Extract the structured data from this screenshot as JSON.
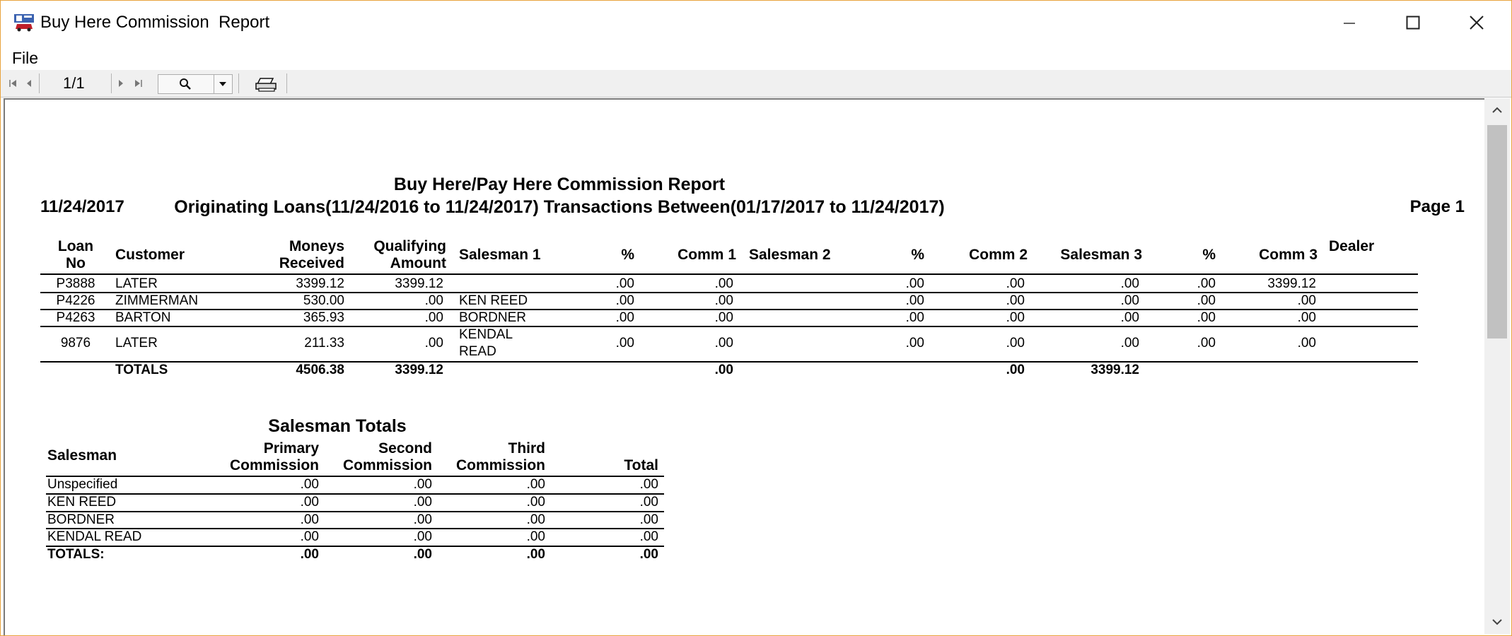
{
  "window": {
    "title": "Buy Here Commission  Report",
    "minimize_icon": "minimize-icon",
    "maximize_icon": "maximize-icon",
    "close_icon": "close-icon",
    "border_color": "#e8a33d"
  },
  "menu": {
    "file": "File"
  },
  "toolbar": {
    "page_indicator": "1/1"
  },
  "report": {
    "date": "11/24/2017",
    "title": "Buy Here/Pay Here Commission Report",
    "subtitle": "Originating Loans(11/24/2016 to 11/24/2017) Transactions Between(01/17/2017 to 11/24/2017)",
    "page": "Page 1",
    "columns": {
      "loan_no_1": "Loan",
      "loan_no_2": "No",
      "customer": "Customer",
      "moneys_1": "Moneys",
      "moneys_2": "Received",
      "qual_1": "Qualifying",
      "qual_2": "Amount",
      "salesman1": "Salesman 1",
      "pct1": "%",
      "comm1": "Comm 1",
      "salesman2": "Salesman 2",
      "pct2": "%",
      "comm2": "Comm 2",
      "salesman3": "Salesman 3",
      "pct3": "%",
      "comm3": "Comm 3",
      "dealer": "Dealer"
    },
    "rows": [
      {
        "loan": "P3888",
        "customer": "LATER",
        "moneys": "3399.12",
        "qual": "3399.12",
        "s1": "",
        "s1b": "",
        "pct1": ".00",
        "comm1": ".00",
        "s2": "",
        "pct2": ".00",
        "comm2": ".00",
        "s3": ".00",
        "pct3": ".00",
        "comm3": "3399.12"
      },
      {
        "loan": "P4226",
        "customer": "ZIMMERMAN",
        "moneys": "530.00",
        "qual": ".00",
        "s1": "KEN REED",
        "s1b": "",
        "pct1": ".00",
        "comm1": ".00",
        "s2": "",
        "pct2": ".00",
        "comm2": ".00",
        "s3": ".00",
        "pct3": ".00",
        "comm3": ".00"
      },
      {
        "loan": "P4263",
        "customer": "BARTON",
        "moneys": "365.93",
        "qual": ".00",
        "s1": "BORDNER",
        "s1b": "",
        "pct1": ".00",
        "comm1": ".00",
        "s2": "",
        "pct2": ".00",
        "comm2": ".00",
        "s3": ".00",
        "pct3": ".00",
        "comm3": ".00"
      },
      {
        "loan": "9876",
        "customer": "LATER",
        "moneys": "211.33",
        "qual": ".00",
        "s1": "KENDAL",
        "s1b": "READ",
        "pct1": ".00",
        "comm1": ".00",
        "s2": "",
        "pct2": ".00",
        "comm2": ".00",
        "s3": ".00",
        "pct3": ".00",
        "comm3": ".00"
      }
    ],
    "totals": {
      "label": "TOTALS",
      "moneys": "4506.38",
      "qual": "3399.12",
      "comm1": ".00",
      "comm2": ".00",
      "s3": "3399.12"
    }
  },
  "salesman_totals": {
    "title": "Salesman Totals",
    "columns": {
      "salesman": "Salesman",
      "primary_1": "Primary",
      "primary_2": "Commission",
      "second_1": "Second",
      "second_2": "Commission",
      "third_1": "Third",
      "third_2": "Commission",
      "total": "Total"
    },
    "rows": [
      {
        "name": "Unspecified",
        "primary": ".00",
        "second": ".00",
        "third": ".00",
        "total": ".00"
      },
      {
        "name": "KEN REED",
        "primary": ".00",
        "second": ".00",
        "third": ".00",
        "total": ".00"
      },
      {
        "name": "BORDNER",
        "primary": ".00",
        "second": ".00",
        "third": ".00",
        "total": ".00"
      },
      {
        "name": "KENDAL READ",
        "primary": ".00",
        "second": ".00",
        "third": ".00",
        "total": ".00"
      }
    ],
    "totals": {
      "label": "TOTALS:",
      "primary": ".00",
      "second": ".00",
      "third": ".00",
      "total": ".00"
    }
  }
}
